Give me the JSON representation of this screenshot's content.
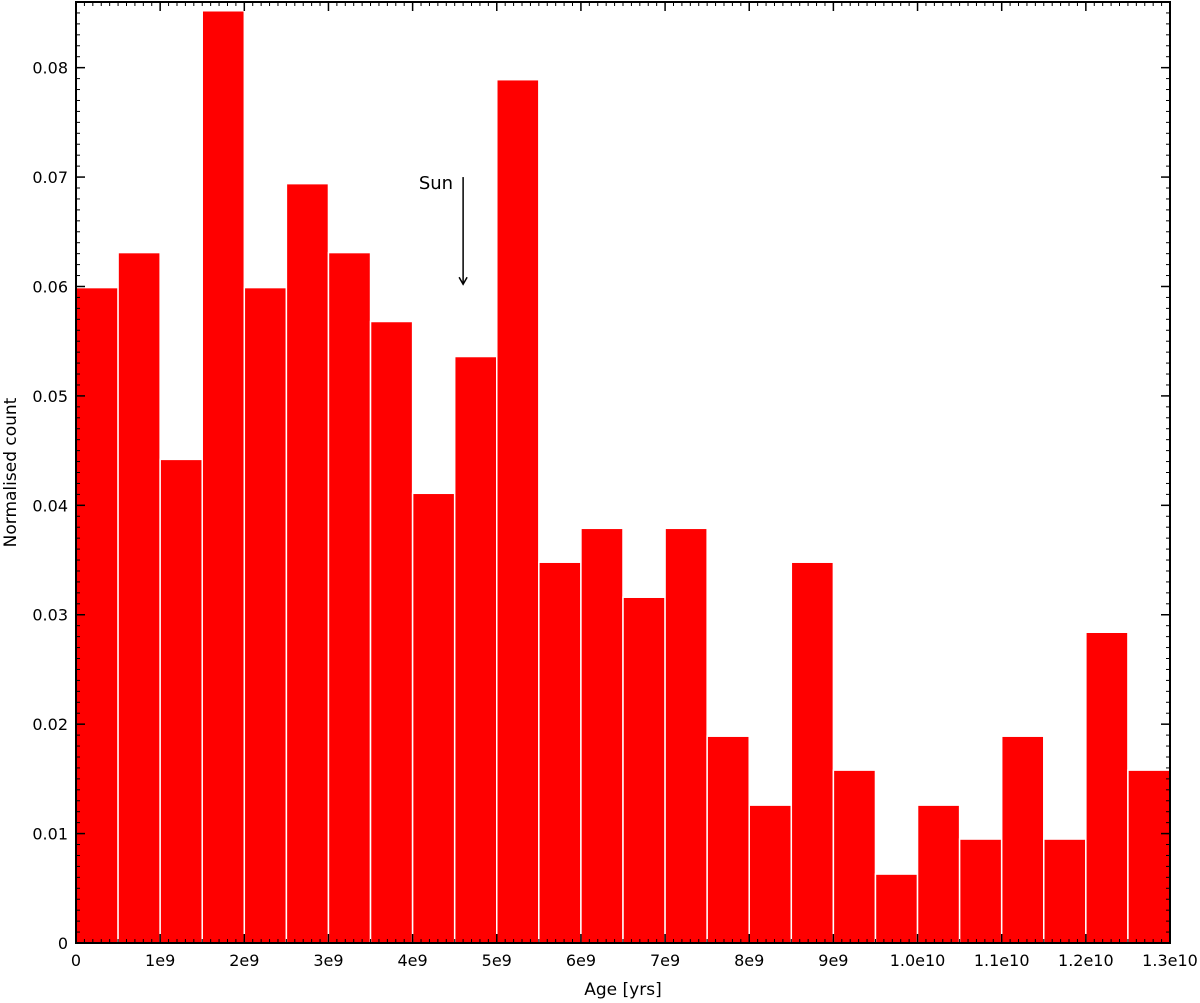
{
  "chart_data": {
    "type": "bar",
    "xlabel": "Age [yrs]",
    "ylabel": "Normalised count",
    "xlim": [
      0,
      13000000000
    ],
    "ylim": [
      0,
      0.086
    ],
    "bin_width": 500000000,
    "bins_start": [
      0,
      500000000,
      1000000000,
      1500000000,
      2000000000,
      2500000000,
      3000000000,
      3500000000,
      4000000000,
      4500000000,
      5000000000,
      5500000000,
      6000000000,
      6500000000,
      7000000000,
      7500000000,
      8000000000,
      8500000000,
      9000000000,
      9500000000,
      10000000000,
      10500000000,
      11000000000,
      11500000000,
      12000000000,
      12500000000
    ],
    "values": [
      0.0599,
      0.0631,
      0.0442,
      0.0852,
      0.0599,
      0.0694,
      0.0631,
      0.0568,
      0.0411,
      0.0536,
      0.0789,
      0.0348,
      0.0379,
      0.0316,
      0.0379,
      0.0189,
      0.0126,
      0.0348,
      0.0158,
      0.0063,
      0.0126,
      0.0095,
      0.0189,
      0.0095,
      0.0284,
      0.0158
    ],
    "x_ticks": [
      0,
      1000000000,
      2000000000,
      3000000000,
      4000000000,
      5000000000,
      6000000000,
      7000000000,
      8000000000,
      9000000000,
      10000000000,
      11000000000,
      12000000000,
      13000000000
    ],
    "x_tick_labels": [
      "0",
      "1e9",
      "2e9",
      "3e9",
      "4e9",
      "5e9",
      "6e9",
      "7e9",
      "8e9",
      "9e9",
      "1.0e10",
      "1.1e10",
      "1.2e10",
      "1.3e10"
    ],
    "y_ticks": [
      0,
      0.01,
      0.02,
      0.03,
      0.04,
      0.05,
      0.06,
      0.07,
      0.08
    ],
    "y_tick_labels": [
      "0",
      "0.01",
      "0.02",
      "0.03",
      "0.04",
      "0.05",
      "0.06",
      "0.07",
      "0.08"
    ],
    "grid": false,
    "bar_color": "#ff0000",
    "annotation": {
      "text": "Sun",
      "x": 4600000000,
      "y_start": 0.07,
      "y_end": 0.0602
    }
  }
}
